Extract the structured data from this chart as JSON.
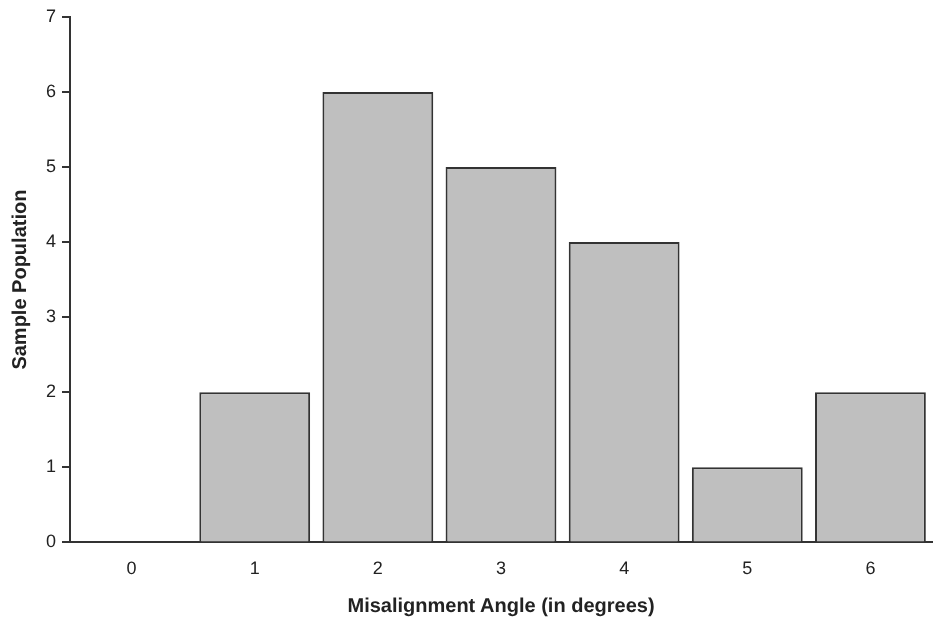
{
  "chart_data": {
    "type": "bar",
    "xlabel": "Misalignment Angle (in degrees)",
    "ylabel": "Sample Population",
    "categories": [
      "0",
      "1",
      "2",
      "3",
      "4",
      "5",
      "6"
    ],
    "values": [
      0,
      2,
      6,
      5,
      4,
      1,
      2
    ],
    "color": "#bfbfbf",
    "ylim": [
      0,
      7
    ],
    "yticks": [
      0,
      1,
      2,
      3,
      4,
      5,
      6,
      7
    ],
    "grid": false,
    "legend": false
  }
}
